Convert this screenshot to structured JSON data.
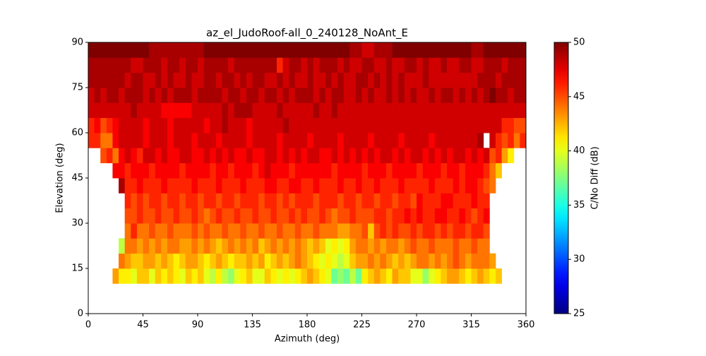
{
  "chart_data": {
    "type": "heatmap",
    "title": "az_el_JudoRoof-all_0_240128_NoAnt_E",
    "xlabel": "Azimuth (deg)",
    "ylabel": "Elevation (deg)",
    "colorbar_label": "C/No Diff (dB)",
    "colormap": "jet",
    "xlim": [
      0,
      360
    ],
    "xticks": [
      0,
      45,
      90,
      135,
      180,
      225,
      270,
      315,
      360
    ],
    "ylim": [
      0,
      90
    ],
    "yticks": [
      0,
      15,
      30,
      45,
      60,
      75,
      90
    ],
    "clim": [
      25,
      50
    ],
    "cticks": [
      25,
      30,
      35,
      40,
      45,
      50
    ],
    "x_edges": [
      0,
      5,
      10,
      15,
      20,
      25,
      30,
      35,
      40,
      45,
      50,
      55,
      60,
      65,
      70,
      75,
      80,
      85,
      90,
      95,
      100,
      105,
      110,
      115,
      120,
      125,
      130,
      135,
      140,
      145,
      150,
      155,
      160,
      165,
      170,
      175,
      180,
      185,
      190,
      195,
      200,
      205,
      210,
      215,
      220,
      225,
      230,
      235,
      240,
      245,
      250,
      255,
      260,
      265,
      270,
      275,
      280,
      285,
      290,
      295,
      300,
      305,
      310,
      315,
      320,
      325,
      330,
      335,
      340,
      345,
      350,
      355,
      360
    ],
    "y_edges": [
      10,
      15,
      20,
      25,
      30,
      35,
      40,
      45,
      50,
      55,
      60,
      65,
      70,
      75,
      80,
      85,
      90
    ],
    "z": [
      [
        null,
        null,
        null,
        null,
        43,
        41,
        41,
        40,
        42,
        42,
        40,
        42,
        41,
        42,
        41,
        40,
        42,
        41,
        42,
        40,
        39,
        41,
        39,
        38,
        40,
        41,
        42,
        40,
        40,
        42,
        41,
        40,
        41,
        40,
        41,
        42,
        43,
        42,
        41,
        40,
        37,
        38,
        37,
        39,
        37,
        41,
        42,
        43,
        42,
        41,
        43,
        42,
        42,
        40,
        40,
        38,
        40,
        41,
        42,
        43,
        43,
        42,
        41,
        42,
        43,
        42,
        41,
        42,
        null,
        null,
        null,
        null
      ],
      [
        null,
        null,
        null,
        null,
        null,
        44,
        43,
        42,
        42,
        43,
        43,
        42,
        43,
        42,
        41,
        42,
        43,
        43,
        42,
        41,
        42,
        43,
        42,
        41,
        42,
        42,
        43,
        42,
        43,
        41,
        42,
        43,
        42,
        43,
        44,
        43,
        42,
        41,
        40,
        41,
        40,
        39,
        40,
        42,
        43,
        43,
        44,
        43,
        44,
        43,
        42,
        43,
        42,
        43,
        44,
        44,
        43,
        44,
        43,
        44,
        45,
        44,
        43,
        44,
        44,
        44,
        43,
        null,
        null,
        null,
        null,
        null
      ],
      [
        null,
        null,
        null,
        null,
        null,
        39,
        44,
        44,
        43,
        44,
        43,
        44,
        43,
        44,
        44,
        43,
        43,
        44,
        43,
        44,
        43,
        42,
        43,
        44,
        43,
        44,
        43,
        44,
        42,
        43,
        44,
        43,
        44,
        43,
        44,
        43,
        42,
        43,
        42,
        40,
        41,
        40,
        41,
        43,
        44,
        44,
        43,
        44,
        43,
        44,
        44,
        43,
        44,
        45,
        44,
        44,
        45,
        44,
        44,
        44,
        45,
        44,
        44,
        45,
        44,
        44,
        null,
        null,
        null,
        null,
        null,
        null
      ],
      [
        null,
        null,
        null,
        null,
        null,
        null,
        44,
        46,
        44,
        44,
        45,
        44,
        44,
        45,
        44,
        44,
        44,
        45,
        44,
        45,
        44,
        44,
        45,
        44,
        44,
        45,
        44,
        44,
        45,
        44,
        44,
        45,
        44,
        44,
        45,
        44,
        44,
        45,
        44,
        44,
        44,
        43,
        43,
        44,
        44,
        45,
        42,
        45,
        46,
        45,
        46,
        45,
        45,
        46,
        45,
        46,
        46,
        45,
        46,
        45,
        46,
        46,
        45,
        46,
        46,
        45,
        null,
        null,
        null,
        null,
        null,
        null
      ],
      [
        null,
        null,
        null,
        null,
        null,
        null,
        45,
        45,
        46,
        45,
        45,
        46,
        45,
        45,
        46,
        45,
        45,
        46,
        45,
        44,
        45,
        46,
        45,
        45,
        46,
        45,
        45,
        46,
        45,
        45,
        46,
        45,
        45,
        46,
        45,
        46,
        45,
        45,
        46,
        45,
        44,
        45,
        45,
        46,
        45,
        45,
        45,
        46,
        46,
        45,
        46,
        46,
        47,
        46,
        47,
        46,
        46,
        47,
        47,
        46,
        46,
        47,
        46,
        45,
        46,
        47,
        null,
        null,
        null,
        null,
        null,
        null
      ],
      [
        null,
        null,
        null,
        null,
        null,
        null,
        46,
        45,
        46,
        45,
        46,
        46,
        45,
        46,
        46,
        45,
        46,
        46,
        45,
        46,
        46,
        45,
        46,
        46,
        45,
        46,
        46,
        46,
        45,
        46,
        46,
        45,
        46,
        45,
        46,
        46,
        46,
        45,
        46,
        46,
        46,
        45,
        46,
        46,
        45,
        46,
        46,
        45,
        46,
        46,
        45,
        46,
        46,
        45,
        47,
        46,
        46,
        46,
        47,
        47,
        46,
        46,
        46,
        47,
        46,
        46,
        null,
        null,
        null,
        null,
        null,
        null
      ],
      [
        null,
        null,
        null,
        null,
        null,
        49,
        46,
        46,
        47,
        46,
        46,
        46,
        47,
        46,
        46,
        46,
        46,
        47,
        46,
        46,
        46,
        47,
        46,
        46,
        46,
        47,
        46,
        46,
        46,
        47,
        47,
        46,
        46,
        47,
        47,
        46,
        46,
        47,
        46,
        46,
        46,
        47,
        46,
        46,
        47,
        46,
        46,
        47,
        46,
        46,
        46,
        47,
        46,
        46,
        46,
        46,
        47,
        46,
        46,
        46,
        47,
        46,
        47,
        47,
        46,
        45,
        44,
        null,
        null,
        null,
        null,
        null
      ],
      [
        null,
        null,
        null,
        null,
        47,
        47,
        46,
        47,
        47,
        47,
        46,
        47,
        47,
        47,
        47,
        46,
        47,
        47,
        47,
        47,
        46,
        47,
        47,
        46,
        47,
        47,
        47,
        46,
        47,
        48,
        47,
        47,
        47,
        46,
        47,
        47,
        47,
        47,
        47,
        47,
        46,
        47,
        47,
        47,
        47,
        46,
        47,
        47,
        47,
        46,
        47,
        47,
        47,
        47,
        46,
        47,
        47,
        47,
        46,
        47,
        47,
        46,
        47,
        47,
        47,
        46,
        44,
        42,
        null,
        null,
        null,
        null
      ],
      [
        null,
        null,
        45,
        46,
        44,
        47,
        48,
        47,
        46,
        48,
        48,
        47,
        48,
        47,
        47,
        48,
        48,
        47,
        47,
        48,
        47,
        48,
        47,
        48,
        47,
        47,
        48,
        47,
        47,
        48,
        48,
        47,
        48,
        47,
        48,
        47,
        48,
        48,
        47,
        47,
        48,
        47,
        48,
        47,
        48,
        47,
        48,
        47,
        48,
        48,
        47,
        48,
        47,
        48,
        48,
        47,
        48,
        47,
        48,
        47,
        48,
        48,
        47,
        48,
        47,
        48,
        45,
        46,
        43,
        41,
        null,
        null
      ],
      [
        46,
        46,
        44,
        44,
        47,
        48,
        48,
        48,
        48,
        47,
        48,
        48,
        48,
        47,
        48,
        48,
        48,
        47,
        48,
        48,
        48,
        47,
        48,
        48,
        48,
        48,
        47,
        48,
        48,
        48,
        48,
        47,
        48,
        48,
        48,
        48,
        47,
        48,
        48,
        48,
        48,
        47,
        48,
        48,
        48,
        48,
        47,
        48,
        48,
        48,
        48,
        47,
        48,
        48,
        48,
        48,
        47,
        48,
        48,
        48,
        48,
        48,
        48,
        48,
        49,
        null,
        48,
        46,
        45,
        46,
        44,
        46
      ],
      [
        46,
        47,
        45,
        46,
        47,
        48,
        48,
        48,
        48,
        47,
        48,
        48,
        48,
        47,
        48,
        48,
        48,
        48,
        48,
        47,
        48,
        48,
        49,
        48,
        48,
        48,
        47,
        48,
        48,
        48,
        48,
        48,
        49,
        48,
        48,
        48,
        48,
        48,
        48,
        48,
        48,
        48,
        48,
        48,
        48,
        48,
        48,
        48,
        48,
        48,
        48,
        48,
        48,
        48,
        48,
        48,
        48,
        48,
        48,
        48,
        48,
        48,
        48,
        48,
        48,
        48,
        48,
        48,
        46,
        46,
        45,
        45
      ],
      [
        48,
        48,
        48,
        48,
        48,
        48,
        48,
        49,
        48,
        48,
        48,
        48,
        47,
        47,
        47,
        47,
        47,
        48,
        48,
        48,
        48,
        48,
        49,
        48,
        49,
        49,
        49,
        48,
        48,
        48,
        48,
        49,
        48,
        48,
        48,
        48,
        48,
        49,
        48,
        48,
        49,
        48,
        48,
        48,
        48,
        48,
        48,
        48,
        48,
        48,
        48,
        48,
        48,
        48,
        48,
        48,
        48,
        48,
        48,
        48,
        48,
        48,
        48,
        48,
        48,
        48,
        48,
        48,
        48,
        48,
        48,
        48
      ],
      [
        48,
        49,
        48,
        49,
        49,
        48,
        49,
        49,
        49,
        48,
        49,
        48,
        49,
        48,
        49,
        49,
        49,
        48,
        49,
        49,
        49,
        49,
        48,
        49,
        49,
        48,
        49,
        49,
        48,
        49,
        49,
        48,
        49,
        48,
        49,
        49,
        49,
        48,
        49,
        48,
        49,
        49,
        48,
        48,
        49,
        48,
        49,
        48,
        48,
        49,
        48,
        49,
        48,
        49,
        48,
        48,
        49,
        48,
        49,
        49,
        48,
        49,
        48,
        49,
        48,
        49,
        50,
        49,
        49,
        48,
        49,
        49
      ],
      [
        49,
        49,
        49,
        49,
        49,
        49,
        48,
        49,
        49,
        48,
        48,
        49,
        48,
        49,
        48,
        48,
        49,
        48,
        48,
        49,
        49,
        48,
        49,
        49,
        48,
        49,
        48,
        49,
        49,
        48,
        48,
        49,
        48,
        49,
        48,
        48,
        49,
        48,
        48,
        49,
        48,
        49,
        48,
        48,
        49,
        49,
        48,
        49,
        48,
        49,
        48,
        49,
        48,
        48,
        48,
        49,
        48,
        48,
        48,
        48,
        48,
        48,
        48,
        48,
        49,
        49,
        49,
        48,
        49,
        49,
        49,
        49
      ],
      [
        49,
        49,
        49,
        49,
        49,
        49,
        49,
        48,
        48,
        49,
        49,
        49,
        48,
        49,
        49,
        48,
        49,
        49,
        48,
        49,
        49,
        49,
        49,
        48,
        49,
        49,
        49,
        49,
        49,
        49,
        49,
        46,
        48,
        49,
        49,
        48,
        49,
        48,
        49,
        49,
        49,
        48,
        49,
        48,
        48,
        49,
        49,
        48,
        48,
        49,
        48,
        48,
        49,
        49,
        48,
        49,
        48,
        48,
        49,
        48,
        48,
        49,
        49,
        48,
        48,
        49,
        49,
        49,
        48,
        49,
        49,
        49
      ],
      [
        50,
        50,
        50,
        50,
        50,
        50,
        50,
        50,
        50,
        50,
        49,
        49,
        49,
        49,
        49,
        49,
        49,
        49,
        49,
        50,
        50,
        50,
        50,
        50,
        50,
        50,
        50,
        50,
        50,
        50,
        50,
        50,
        50,
        50,
        50,
        50,
        50,
        50,
        50,
        50,
        50,
        50,
        50,
        49,
        49,
        48,
        48,
        49,
        49,
        49,
        50,
        50,
        50,
        50,
        50,
        50,
        50,
        50,
        50,
        50,
        50,
        50,
        50,
        49,
        49,
        50,
        50,
        50,
        50,
        50,
        50,
        50
      ]
    ]
  }
}
